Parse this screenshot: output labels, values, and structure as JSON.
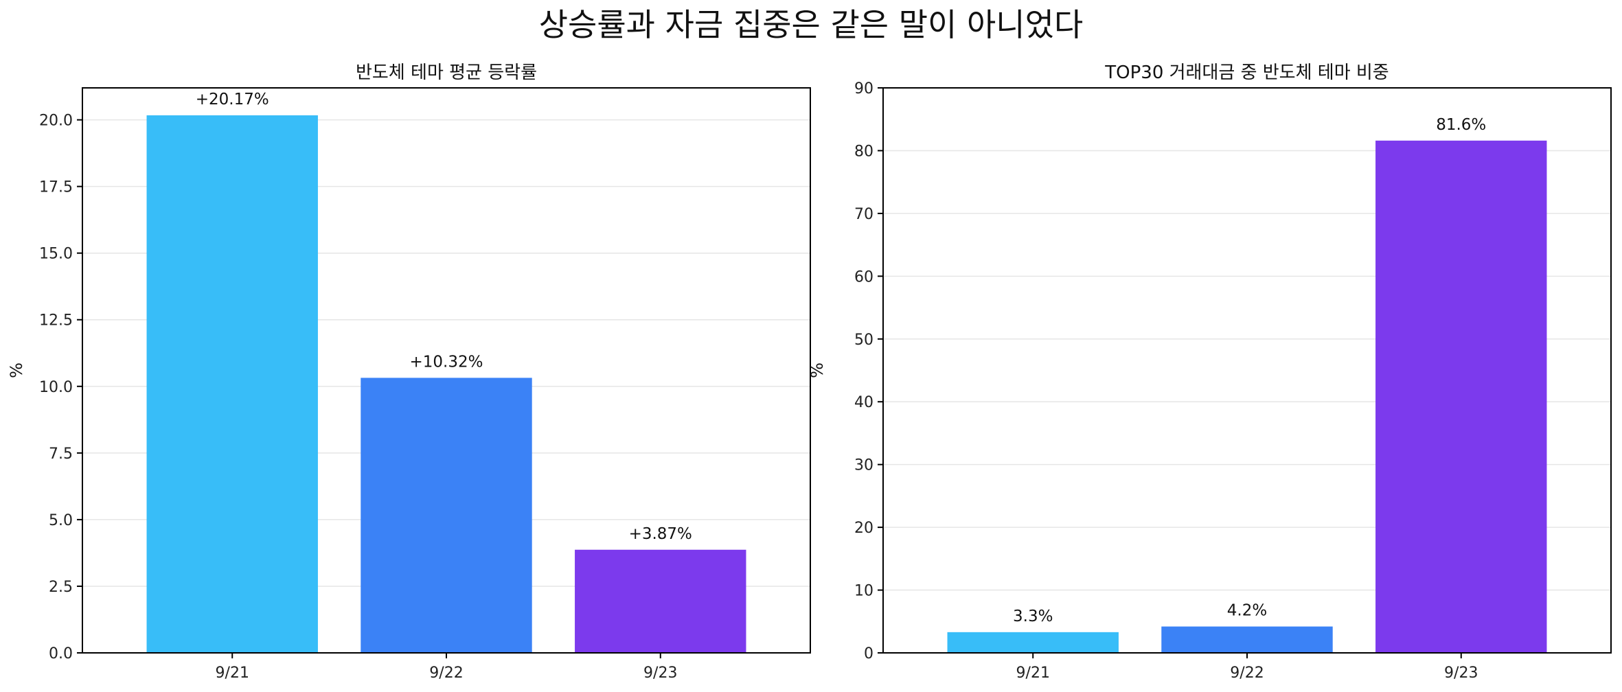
{
  "figure": {
    "title": "상승률과 자금 집중은 같은 말이 아니었다"
  },
  "chart_data": [
    {
      "type": "bar",
      "title": "반도체 테마 평균 등락률",
      "xlabel": "",
      "ylabel": "%",
      "categories": [
        "9/21",
        "9/22",
        "9/23"
      ],
      "values": [
        20.17,
        10.32,
        3.87
      ],
      "data_labels": [
        "+20.17%",
        "+10.32%",
        "+3.87%"
      ],
      "bar_colors": [
        "#38bdf8",
        "#3b82f6",
        "#7c3aed"
      ],
      "ylim": [
        0,
        21.2
      ],
      "yticks": [
        0,
        2.5,
        5,
        7.5,
        10,
        12.5,
        15,
        17.5,
        20
      ],
      "ytick_labels": [
        "0.0",
        "2.5",
        "5.0",
        "7.5",
        "10.0",
        "12.5",
        "15.0",
        "17.5",
        "20.0"
      ],
      "grid": "y"
    },
    {
      "type": "bar",
      "title": "TOP30 거래대금 중 반도체 테마 비중",
      "xlabel": "",
      "ylabel": "%",
      "categories": [
        "9/21",
        "9/22",
        "9/23"
      ],
      "values": [
        3.3,
        4.2,
        81.6
      ],
      "data_labels": [
        "3.3%",
        "4.2%",
        "81.6%"
      ],
      "bar_colors": [
        "#38bdf8",
        "#3b82f6",
        "#7c3aed"
      ],
      "ylim": [
        0,
        90
      ],
      "yticks": [
        0,
        10,
        20,
        30,
        40,
        50,
        60,
        70,
        80,
        90
      ],
      "ytick_labels": [
        "0",
        "10",
        "20",
        "30",
        "40",
        "50",
        "60",
        "70",
        "80",
        "90"
      ],
      "grid": "y"
    }
  ]
}
